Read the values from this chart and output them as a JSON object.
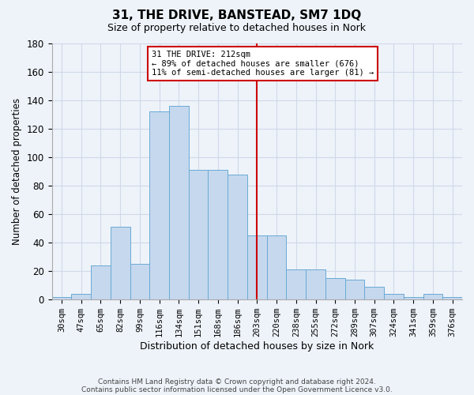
{
  "title": "31, THE DRIVE, BANSTEAD, SM7 1DQ",
  "subtitle": "Size of property relative to detached houses in Nork",
  "xlabel": "Distribution of detached houses by size in Nork",
  "ylabel": "Number of detached properties",
  "bar_labels": [
    "30sqm",
    "47sqm",
    "65sqm",
    "82sqm",
    "99sqm",
    "116sqm",
    "134sqm",
    "151sqm",
    "168sqm",
    "186sqm",
    "203sqm",
    "220sqm",
    "238sqm",
    "255sqm",
    "272sqm",
    "289sqm",
    "307sqm",
    "324sqm",
    "341sqm",
    "359sqm",
    "376sqm"
  ],
  "bar_values": [
    2,
    4,
    24,
    51,
    25,
    132,
    136,
    91,
    91,
    88,
    45,
    45,
    21,
    21,
    15,
    14,
    9,
    4,
    2,
    4,
    2
  ],
  "highlight_index": 10,
  "annotation_text1": "31 THE DRIVE: 212sqm",
  "annotation_text2": "← 89% of detached houses are smaller (676)",
  "annotation_text3": "11% of semi-detached houses are larger (81) →",
  "bar_color": "#c5d8ee",
  "bar_edge_color": "#6aaad4",
  "highlight_color": "#cc0000",
  "background_color": "#eef3fa",
  "grid_color": "#d0d8e8",
  "footer_line1": "Contains HM Land Registry data © Crown copyright and database right 2024.",
  "footer_line2": "Contains public sector information licensed under the Open Government Licence v3.0.",
  "ylim": [
    0,
    180
  ],
  "yticks": [
    0,
    20,
    40,
    60,
    80,
    100,
    120,
    140,
    160,
    180
  ]
}
